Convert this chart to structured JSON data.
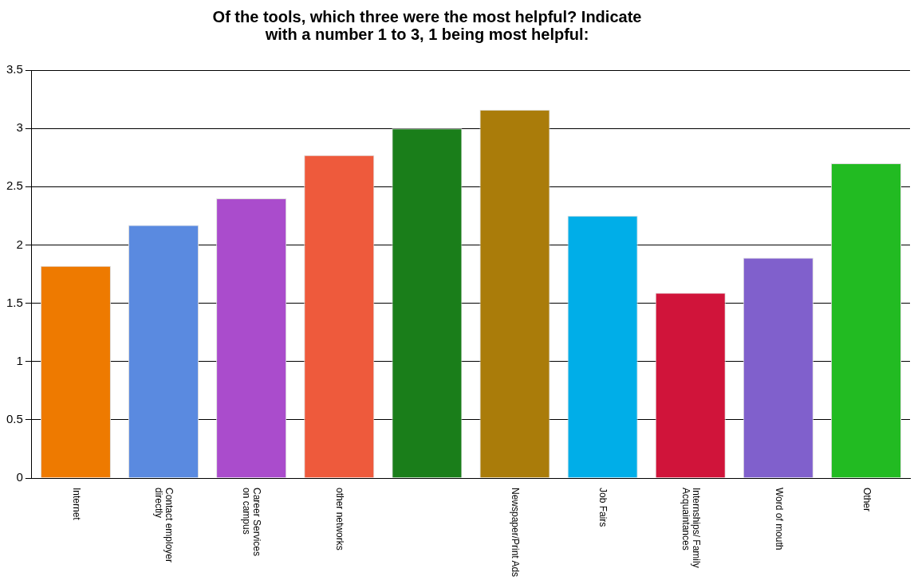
{
  "chart_data": {
    "type": "bar",
    "title": "Of the tools, which three were the most helpful? Indicate with a number 1 to 3, 1 being most helpful:",
    "categories": [
      "Internet",
      "Contact employer\ndirectly",
      "Career Services\non campus",
      "other networks",
      null,
      "Newspaper/Print Ads",
      "Job Fairs",
      "Internships/ Family\nAcquaintances",
      "Word of mouth",
      "Other"
    ],
    "values": [
      1.82,
      2.17,
      2.4,
      2.77,
      3.0,
      3.16,
      2.25,
      1.59,
      1.89,
      2.7
    ],
    "colors": [
      "#ee7a00",
      "#5a8ae0",
      "#aa4ccc",
      "#ee5a3c",
      "#1a7e1a",
      "#aa7c0a",
      "#00aee8",
      "#d0143a",
      "#8060cc",
      "#22bb22"
    ],
    "ylim": [
      0,
      3.5
    ],
    "yticks": [
      0,
      0.5,
      1,
      1.5,
      2,
      2.5,
      3,
      3.5
    ],
    "grid": "y",
    "legend": false
  }
}
